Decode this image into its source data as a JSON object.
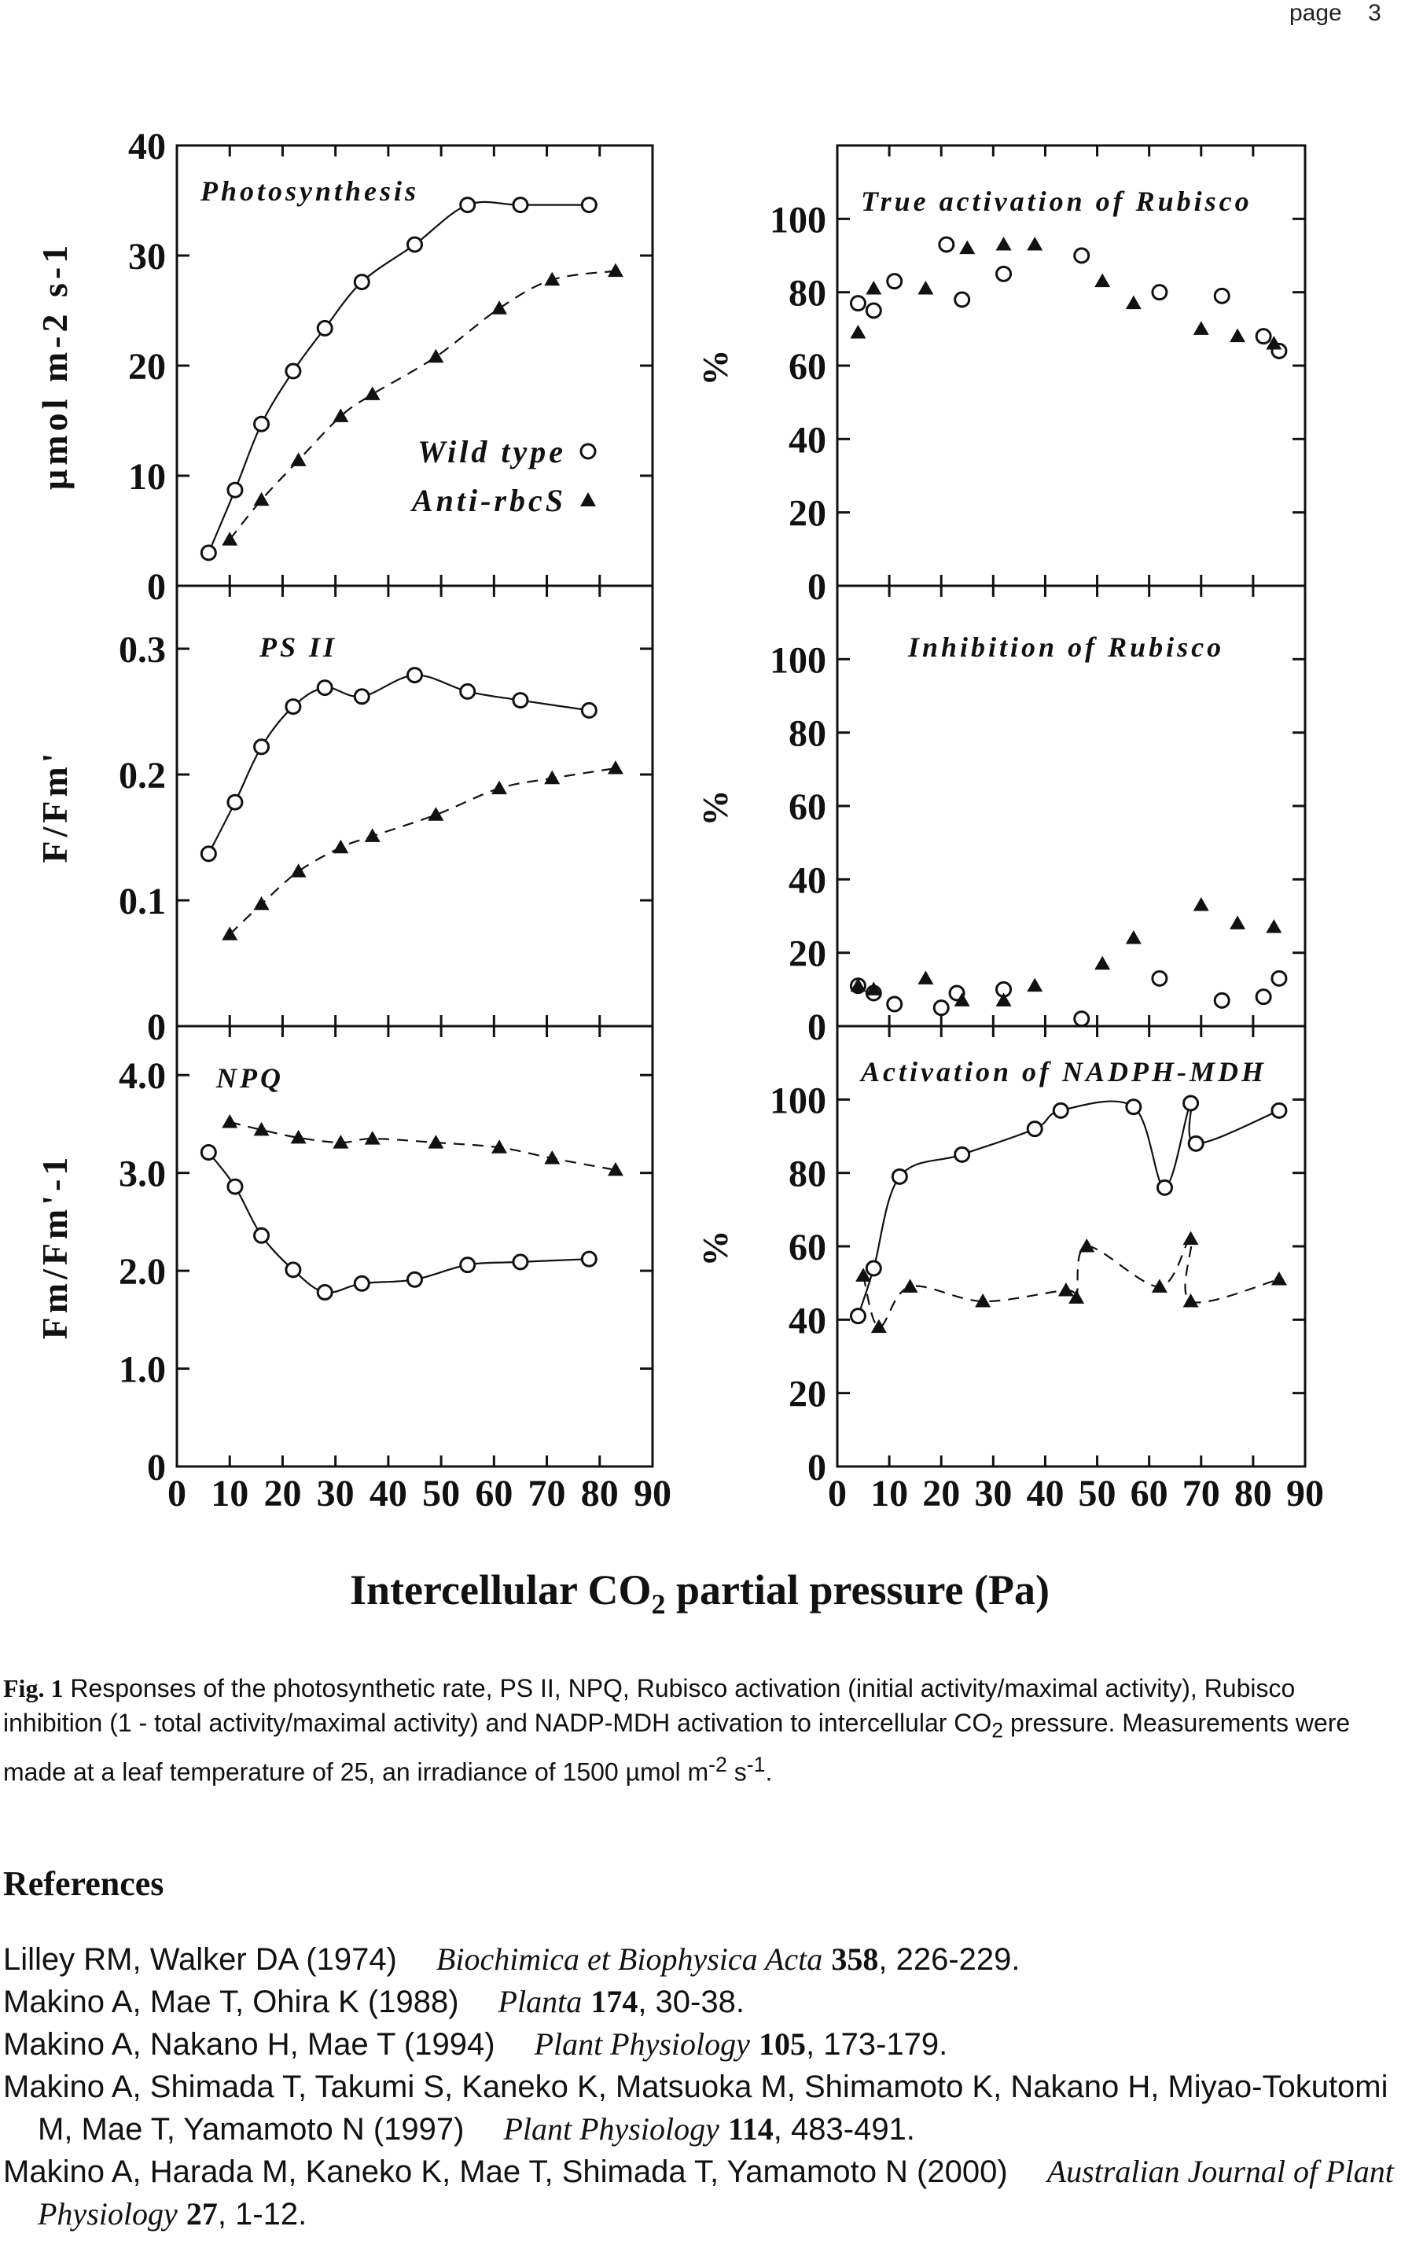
{
  "header": {
    "label": "page",
    "number": "3"
  },
  "figure": {
    "xlabel_main": "Intercellular CO",
    "xlabel_sub": "2",
    "xlabel_rest": " partial pressure (Pa)"
  },
  "chart_data": [
    {
      "type": "scatter",
      "title": "Photosynthesis",
      "ylabel": "µmol m-2 s-1",
      "xlim": [
        0,
        90
      ],
      "ylim": [
        0,
        40
      ],
      "yticks": [
        "0",
        "10",
        "20",
        "30",
        "40"
      ],
      "legend": {
        "placement": "bottom-right",
        "items": [
          "Wild type",
          "Anti-rbcS"
        ]
      },
      "series": [
        {
          "name": "Wild type",
          "marker": "circle",
          "fit": "solid",
          "x": [
            6,
            11,
            16,
            22,
            28,
            35,
            45,
            55,
            65,
            78
          ],
          "y": [
            3,
            8.7,
            14.7,
            19.5,
            23.4,
            27.6,
            31.0,
            34.6,
            34.6,
            34.6
          ]
        },
        {
          "name": "Anti-rbcS",
          "marker": "triangle",
          "fit": "dashed",
          "x": [
            10,
            16,
            23,
            31,
            37,
            49,
            61,
            71,
            83
          ],
          "y": [
            4.2,
            7.8,
            11.4,
            15.4,
            17.4,
            20.8,
            25.2,
            27.8,
            28.6
          ]
        }
      ]
    },
    {
      "type": "scatter",
      "title": "True activation of Rubisco",
      "ylabel": "%",
      "xlim": [
        0,
        90
      ],
      "ylim": [
        0,
        120
      ],
      "yticks": [
        "0",
        "20",
        "40",
        "60",
        "80",
        "100"
      ],
      "series": [
        {
          "name": "Wild type",
          "marker": "circle",
          "x": [
            4,
            7,
            11,
            21,
            24,
            32,
            47,
            62,
            74,
            82,
            85
          ],
          "y": [
            77,
            75,
            83,
            93,
            78,
            85,
            90,
            80,
            79,
            68,
            64
          ]
        },
        {
          "name": "Anti-rbcS",
          "marker": "triangle",
          "x": [
            4,
            7,
            17,
            25,
            32,
            38,
            51,
            57,
            70,
            77,
            84
          ],
          "y": [
            69,
            81,
            81,
            92,
            93,
            93,
            83,
            77,
            70,
            68,
            66
          ]
        }
      ]
    },
    {
      "type": "scatter",
      "title": "PS II",
      "ylabel": "F/Fm'",
      "xlim": [
        0,
        90
      ],
      "ylim": [
        0,
        0.35
      ],
      "yticks": [
        "0",
        "0.1",
        "0.2",
        "0.3"
      ],
      "series": [
        {
          "name": "Wild type",
          "marker": "circle",
          "fit": "solid",
          "x": [
            6,
            11,
            16,
            22,
            28,
            35,
            45,
            55,
            65,
            78
          ],
          "y": [
            0.137,
            0.178,
            0.222,
            0.254,
            0.269,
            0.262,
            0.279,
            0.266,
            0.259,
            0.251
          ]
        },
        {
          "name": "Anti-rbcS",
          "marker": "triangle",
          "fit": "dashed",
          "x": [
            10,
            16,
            23,
            31,
            37,
            49,
            61,
            71,
            83
          ],
          "y": [
            0.073,
            0.097,
            0.123,
            0.142,
            0.151,
            0.168,
            0.189,
            0.197,
            0.205
          ]
        }
      ]
    },
    {
      "type": "scatter",
      "title": "Inhibition of Rubisco",
      "ylabel": "%",
      "xlim": [
        0,
        90
      ],
      "ylim": [
        0,
        120
      ],
      "yticks": [
        "0",
        "20",
        "40",
        "60",
        "80",
        "100"
      ],
      "series": [
        {
          "name": "Wild type",
          "marker": "circle",
          "x": [
            4,
            7,
            11,
            20,
            23,
            32,
            47,
            62,
            74,
            82,
            85
          ],
          "y": [
            11,
            9,
            6,
            5,
            9,
            10,
            2,
            13,
            7,
            8,
            13
          ]
        },
        {
          "name": "Anti-rbcS",
          "marker": "triangle",
          "x": [
            4,
            7,
            17,
            24,
            32,
            38,
            51,
            57,
            70,
            77,
            84
          ],
          "y": [
            11,
            10,
            13,
            7,
            7,
            11,
            17,
            24,
            33,
            28,
            27
          ]
        }
      ]
    },
    {
      "type": "scatter",
      "title": "NPQ",
      "ylabel": "Fm/Fm'-1",
      "xlim": [
        0,
        90
      ],
      "ylim": [
        0,
        4.5
      ],
      "yticks": [
        "0",
        "1.0",
        "2.0",
        "3.0",
        "4.0"
      ],
      "series": [
        {
          "name": "Wild type",
          "marker": "circle",
          "fit": "solid",
          "x": [
            6,
            11,
            16,
            22,
            28,
            35,
            45,
            55,
            65,
            78
          ],
          "y": [
            3.21,
            2.86,
            2.36,
            2.01,
            1.78,
            1.87,
            1.91,
            2.06,
            2.09,
            2.12
          ]
        },
        {
          "name": "Anti-rbcS",
          "marker": "triangle",
          "fit": "dashed",
          "x": [
            10,
            16,
            23,
            31,
            37,
            49,
            61,
            71,
            83
          ],
          "y": [
            3.52,
            3.44,
            3.36,
            3.31,
            3.35,
            3.31,
            3.26,
            3.15,
            3.03
          ]
        }
      ]
    },
    {
      "type": "scatter",
      "title": "Activation of NADPH-MDH",
      "ylabel": "%",
      "xlim": [
        0,
        90
      ],
      "ylim": [
        0,
        120
      ],
      "yticks": [
        "0",
        "20",
        "40",
        "60",
        "80",
        "100"
      ],
      "series": [
        {
          "name": "Wild type",
          "marker": "circle",
          "fit": "solid",
          "x": [
            4,
            7,
            12,
            24,
            38,
            43,
            57,
            63,
            68,
            69,
            85
          ],
          "y": [
            41,
            54,
            79,
            85,
            92,
            97,
            98,
            76,
            99,
            88,
            97
          ]
        },
        {
          "name": "Anti-rbcS",
          "marker": "triangle",
          "fit": "dashed",
          "x": [
            5,
            8,
            14,
            28,
            44,
            46,
            48,
            62,
            68,
            68,
            85
          ],
          "y": [
            52,
            38,
            49,
            45,
            48,
            46,
            60,
            49,
            62,
            45,
            51
          ]
        }
      ]
    }
  ],
  "caption": {
    "fig_label": "Fig. 1",
    "text1": "Responses of the photosynthetic rate, PS II, NPQ, Rubisco activation (initial activity/maximal activity), Rubisco inhibition (1 - total activity/maximal activity) and NADP-MDH activation to intercellular CO",
    "sub2": "2",
    "text2": " pressure. Measurements were made at a leaf temperature of 25, an irradiance of 1500 µmol m",
    "sup_m": "-2",
    "text3": " s",
    "sup_s": "-1",
    "text4": "."
  },
  "references": {
    "heading": "References",
    "items": [
      {
        "authors": "Lilley RM, Walker DA (1974)",
        "journal": "Biochimica et Biophysica Acta",
        "volume": "358",
        "pages": ", 226-229."
      },
      {
        "authors": "Makino A, Mae T, Ohira K (1988)",
        "journal": "Planta",
        "volume": "174",
        "pages": ", 30-38."
      },
      {
        "authors": "Makino A, Nakano H, Mae T (1994)",
        "journal": "Plant Physiology",
        "volume": "105",
        "pages": ", 173-179."
      },
      {
        "authors": "Makino A, Shimada T, Takumi S, Kaneko K, Matsuoka M, Shimamoto K, Nakano H, Miyao-Tokutomi M, Mae T, Yamamoto N (1997)",
        "journal": "Plant Physiology",
        "volume": "114",
        "pages": ", 483-491."
      },
      {
        "authors": "Makino A, Harada M, Kaneko K, Mae T, Shimada T, Yamamoto N (2000)",
        "journal": "Australian Journal of Plant Physiology",
        "volume": "27",
        "pages": ", 1-12."
      }
    ]
  }
}
